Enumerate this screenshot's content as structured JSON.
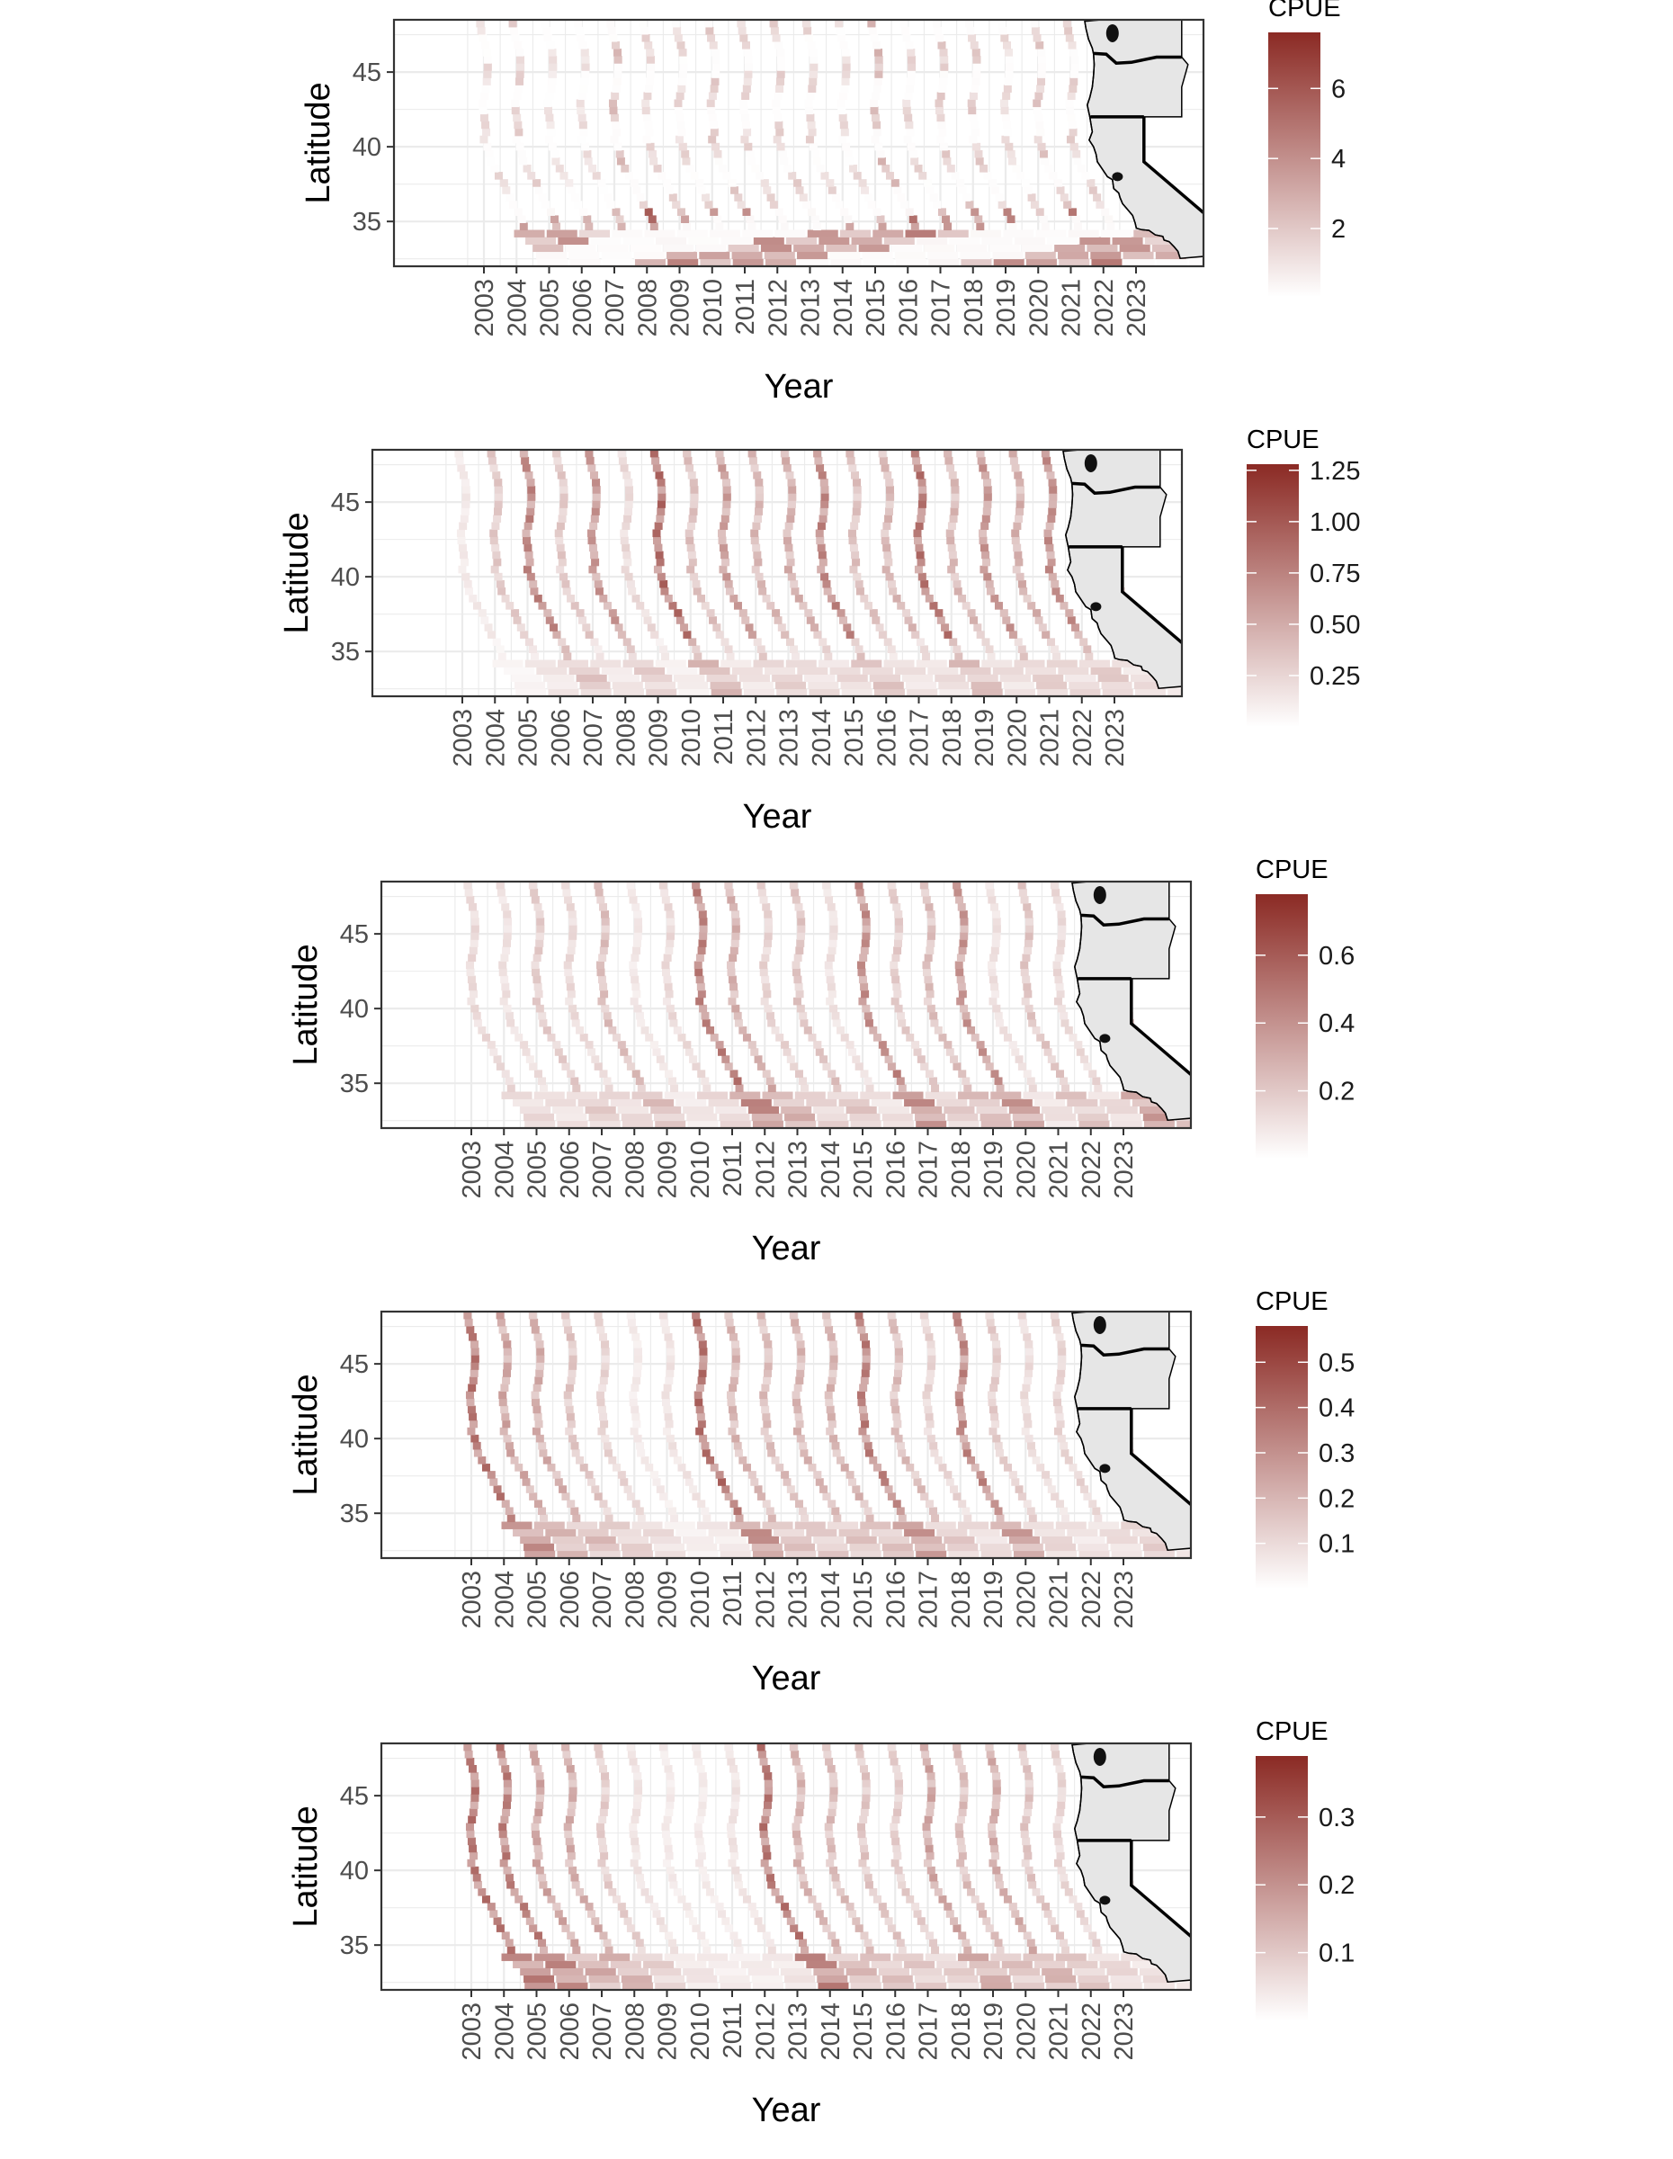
{
  "colors": {
    "high": "#8b2a24",
    "low": "#ffffff",
    "grid": "#ebebeb",
    "panel_border": "#333333",
    "land": "#e6e6e6"
  },
  "chart_data": [
    {
      "type": "heatmap",
      "title": "",
      "xlabel": "Year",
      "ylabel": "Latitude",
      "x_ticks": [
        "2003",
        "2004",
        "2005",
        "2006",
        "2007",
        "2008",
        "2009",
        "2010",
        "2011",
        "2012",
        "2013",
        "2014",
        "2015",
        "2016",
        "2017",
        "2018",
        "2019",
        "2020",
        "2021",
        "2022",
        "2023"
      ],
      "y_ticks": [
        35,
        40,
        45
      ],
      "ylim": [
        32,
        48.5
      ],
      "legend": {
        "title": "CPUE",
        "range": [
          0.05,
          7.6
        ],
        "ticks": [
          "2",
          "4",
          "6"
        ],
        "tick_values": [
          2,
          4,
          6
        ]
      },
      "year_intensity": [
        0.45,
        0.55,
        0.35,
        0.4,
        0.75,
        0.5,
        0.5,
        0.6,
        0.5,
        0.55,
        0.5,
        0.45,
        0.8,
        0.5,
        0.6,
        0.6,
        0.45,
        0.65,
        0.55,
        0.4,
        0.35
      ],
      "north_strength": 0.35,
      "south_strength": 0.8,
      "pattern": "spotty"
    },
    {
      "type": "heatmap",
      "title": "",
      "xlabel": "Year",
      "ylabel": "Latitude",
      "x_ticks": [
        "2003",
        "2004",
        "2005",
        "2006",
        "2007",
        "2008",
        "2009",
        "2010",
        "2011",
        "2012",
        "2013",
        "2014",
        "2015",
        "2016",
        "2017",
        "2018",
        "2019",
        "2020",
        "2021",
        "2022",
        "2023"
      ],
      "y_ticks": [
        35,
        40,
        45
      ],
      "ylim": [
        32,
        48.5
      ],
      "legend": {
        "title": "CPUE",
        "range": [
          0.0,
          1.28
        ],
        "ticks": [
          "0.25",
          "0.50",
          "0.75",
          "1.00",
          "1.25"
        ],
        "tick_values": [
          0.25,
          0.5,
          0.75,
          1.0,
          1.25
        ]
      },
      "year_intensity": [
        0.15,
        0.35,
        0.75,
        0.35,
        0.65,
        0.25,
        0.9,
        0.4,
        0.6,
        0.45,
        0.5,
        0.75,
        0.4,
        0.45,
        0.85,
        0.45,
        0.65,
        0.5,
        0.7,
        0.45,
        0.25
      ],
      "north_strength": 0.85,
      "south_strength": 0.45,
      "pattern": "smooth"
    },
    {
      "type": "heatmap",
      "title": "",
      "xlabel": "Year",
      "ylabel": "Latitude",
      "x_ticks": [
        "2003",
        "2004",
        "2005",
        "2006",
        "2007",
        "2008",
        "2009",
        "2010",
        "2011",
        "2012",
        "2013",
        "2014",
        "2015",
        "2016",
        "2017",
        "2018",
        "2019",
        "2020",
        "2021",
        "2022",
        "2023"
      ],
      "y_ticks": [
        35,
        40,
        45
      ],
      "ylim": [
        32,
        48.5
      ],
      "legend": {
        "title": "CPUE",
        "range": [
          0.0,
          0.78
        ],
        "ticks": [
          "0.2",
          "0.4",
          "0.6"
        ],
        "tick_values": [
          0.2,
          0.4,
          0.6
        ]
      },
      "year_intensity": [
        0.3,
        0.25,
        0.4,
        0.3,
        0.5,
        0.2,
        0.3,
        0.95,
        0.6,
        0.35,
        0.45,
        0.25,
        0.85,
        0.4,
        0.5,
        0.8,
        0.25,
        0.45,
        0.3,
        0.75,
        0.45
      ],
      "north_strength": 0.7,
      "south_strength": 0.75,
      "pattern": "smooth"
    },
    {
      "type": "heatmap",
      "title": "",
      "xlabel": "Year",
      "ylabel": "Latitude",
      "x_ticks": [
        "2003",
        "2004",
        "2005",
        "2006",
        "2007",
        "2008",
        "2009",
        "2010",
        "2011",
        "2012",
        "2013",
        "2014",
        "2015",
        "2016",
        "2017",
        "2018",
        "2019",
        "2020",
        "2021",
        "2022",
        "2023"
      ],
      "y_ticks": [
        35,
        40,
        45
      ],
      "ylim": [
        32,
        48.5
      ],
      "legend": {
        "title": "CPUE",
        "range": [
          0.0,
          0.58
        ],
        "ticks": [
          "0.1",
          "0.2",
          "0.3",
          "0.4",
          "0.5"
        ],
        "tick_values": [
          0.1,
          0.2,
          0.3,
          0.4,
          0.5
        ]
      },
      "year_intensity": [
        0.9,
        0.6,
        0.55,
        0.4,
        0.3,
        0.15,
        0.2,
        0.95,
        0.5,
        0.45,
        0.5,
        0.5,
        0.85,
        0.45,
        0.3,
        0.8,
        0.35,
        0.25,
        0.3,
        0.4,
        0.2
      ],
      "north_strength": 0.8,
      "south_strength": 0.7,
      "pattern": "smooth"
    },
    {
      "type": "heatmap",
      "title": "",
      "xlabel": "Year",
      "ylabel": "Latitude",
      "x_ticks": [
        "2003",
        "2004",
        "2005",
        "2006",
        "2007",
        "2008",
        "2009",
        "2010",
        "2011",
        "2012",
        "2013",
        "2014",
        "2015",
        "2016",
        "2017",
        "2018",
        "2019",
        "2020",
        "2021",
        "2022",
        "2023"
      ],
      "y_ticks": [
        35,
        40,
        45
      ],
      "ylim": [
        32,
        48.5
      ],
      "legend": {
        "title": "CPUE",
        "range": [
          0.0,
          0.39
        ],
        "ticks": [
          "0.1",
          "0.2",
          "0.3"
        ],
        "tick_values": [
          0.1,
          0.2,
          0.3
        ]
      },
      "year_intensity": [
        0.9,
        0.85,
        0.6,
        0.55,
        0.35,
        0.2,
        0.15,
        0.15,
        0.2,
        0.9,
        0.5,
        0.45,
        0.4,
        0.35,
        0.6,
        0.45,
        0.55,
        0.4,
        0.3,
        0.25,
        0.15
      ],
      "north_strength": 0.8,
      "south_strength": 0.8,
      "pattern": "smooth"
    }
  ]
}
